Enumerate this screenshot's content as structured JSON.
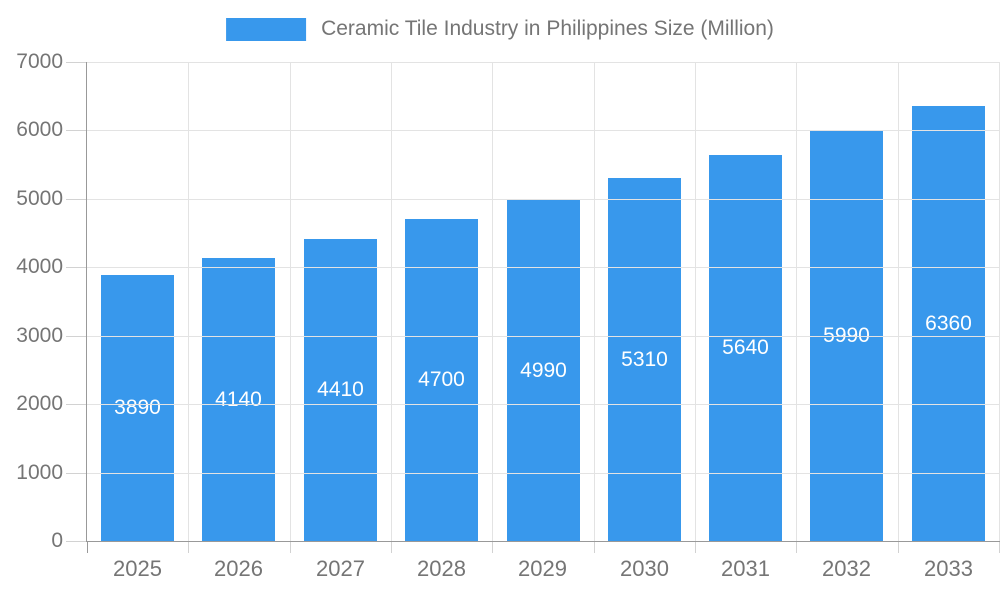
{
  "colors": {
    "bar": "#3898ec",
    "grid": "#e3e3e3",
    "axis": "#999999",
    "tick": "#d2d2d2",
    "axis_text": "#757575",
    "bar_label_text": "#ffffff",
    "background": "#ffffff"
  },
  "chart_data": {
    "type": "bar",
    "title": "Ceramic Tile Industry in Philippines Size (Million)",
    "categories": [
      "2025",
      "2026",
      "2027",
      "2028",
      "2029",
      "2030",
      "2031",
      "2032",
      "2033"
    ],
    "values": [
      3890,
      4140,
      4410,
      4700,
      4990,
      5310,
      5640,
      5990,
      6360
    ],
    "data_labels": [
      "3890",
      "4140",
      "4410",
      "4700",
      "4990",
      "5310",
      "5640",
      "5990",
      "6360"
    ],
    "xlabel": "",
    "ylabel": "",
    "ylim": [
      0,
      7000
    ],
    "yticks": [
      0,
      1000,
      2000,
      3000,
      4000,
      5000,
      6000,
      7000
    ],
    "grid": true,
    "legend_position": "top",
    "bar_labels_inside": "vertically-centered"
  }
}
